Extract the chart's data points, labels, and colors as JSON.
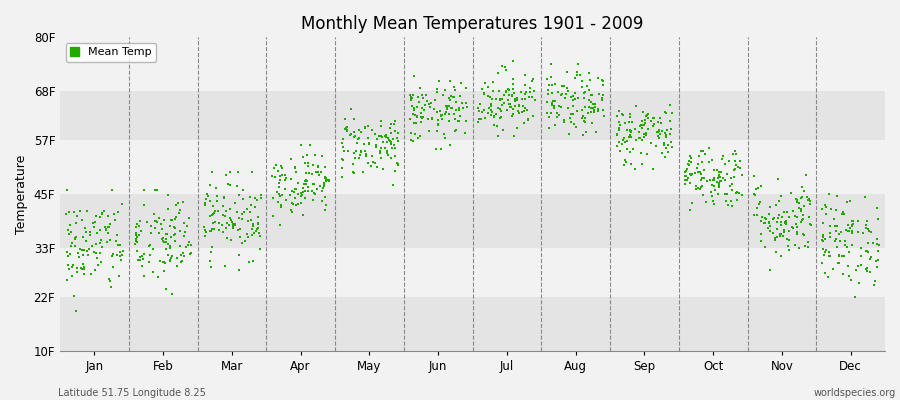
{
  "title": "Monthly Mean Temperatures 1901 - 2009",
  "ylabel": "Temperature",
  "xlabel_bottom_left": "Latitude 51.75 Longitude 8.25",
  "xlabel_bottom_right": "worldspecies.org",
  "legend_label": "Mean Temp",
  "dot_color": "#22aa00",
  "background_color": "#f2f2f2",
  "plot_bg_color": "#f2f2f2",
  "alt_band_color": "#e4e4e4",
  "ytick_labels": [
    "10F",
    "22F",
    "33F",
    "45F",
    "57F",
    "68F",
    "80F"
  ],
  "ytick_values": [
    10,
    22,
    33,
    45,
    57,
    68,
    80
  ],
  "months": [
    "Jan",
    "Feb",
    "Mar",
    "Apr",
    "May",
    "Jun",
    "Jul",
    "Aug",
    "Sep",
    "Oct",
    "Nov",
    "Dec"
  ],
  "num_years": 109,
  "seed": 42,
  "monthly_means_f": [
    33.5,
    34.5,
    40.0,
    47.5,
    56.0,
    63.0,
    66.0,
    65.0,
    58.5,
    49.0,
    39.5,
    34.5
  ],
  "monthly_stds_f": [
    5.5,
    5.5,
    4.5,
    3.5,
    3.5,
    3.5,
    3.5,
    3.5,
    3.5,
    3.5,
    4.5,
    5.0
  ],
  "monthly_mins_f": [
    17,
    17,
    28,
    37,
    47,
    55,
    58,
    57,
    50,
    40,
    28,
    22
  ],
  "monthly_maxs_f": [
    46,
    46,
    50,
    56,
    64,
    73,
    77,
    75,
    68,
    59,
    51,
    47
  ]
}
